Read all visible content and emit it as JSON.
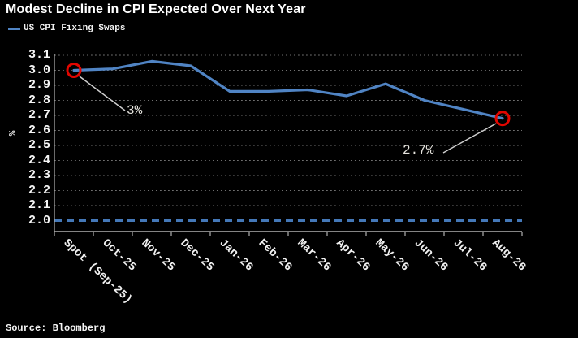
{
  "title": "Modest Decline in CPI Expected Over Next Year",
  "legend": {
    "items": [
      {
        "label": "US CPI Fixing Swaps",
        "color": "#5084c4"
      }
    ]
  },
  "source_note": "Source: Bloomberg",
  "colors": {
    "background": "#000000",
    "title_text": "#ffffff",
    "tick_text": "#f5f5f5",
    "line": "#5084c4",
    "reference_line": "#4478b8",
    "marker_ring": "#e10600",
    "gridline": "#707070",
    "axis": "#b0b0b0",
    "leader_line": "#cfcfcf"
  },
  "chart_data": {
    "type": "line",
    "title": "Modest Decline in CPI Expected Over Next Year",
    "categories": [
      "Spot (Sep-25)",
      "Oct-25",
      "Nov-25",
      "Dec-25",
      "Jan-26",
      "Feb-26",
      "Mar-26",
      "Apr-26",
      "May-26",
      "Jun-26",
      "Jul-26",
      "Aug-26"
    ],
    "series": [
      {
        "name": "US CPI Fixing Swaps",
        "values": [
          3.0,
          3.01,
          3.06,
          3.03,
          2.86,
          2.86,
          2.87,
          2.83,
          2.91,
          2.8,
          2.74,
          2.68
        ]
      }
    ],
    "xlabel": "",
    "ylabel": "%",
    "y_ticks": [
      3.1,
      3.0,
      2.9,
      2.8,
      2.7,
      2.6,
      2.5,
      2.4,
      2.3,
      2.2,
      2.1,
      2.0
    ],
    "ylim": [
      1.93,
      3.1
    ],
    "grid": "dotted-horizontal",
    "legend_position": "top-left",
    "reference_line": {
      "value": 2.0,
      "style": "dashed"
    },
    "highlighted_point_indices": [
      0,
      11
    ],
    "annotations": [
      {
        "text": "3%",
        "category": "Spot (Sep-25)",
        "value": 3.0
      },
      {
        "text": "2.7%",
        "category": "Aug-26",
        "value": 2.68
      }
    ]
  }
}
